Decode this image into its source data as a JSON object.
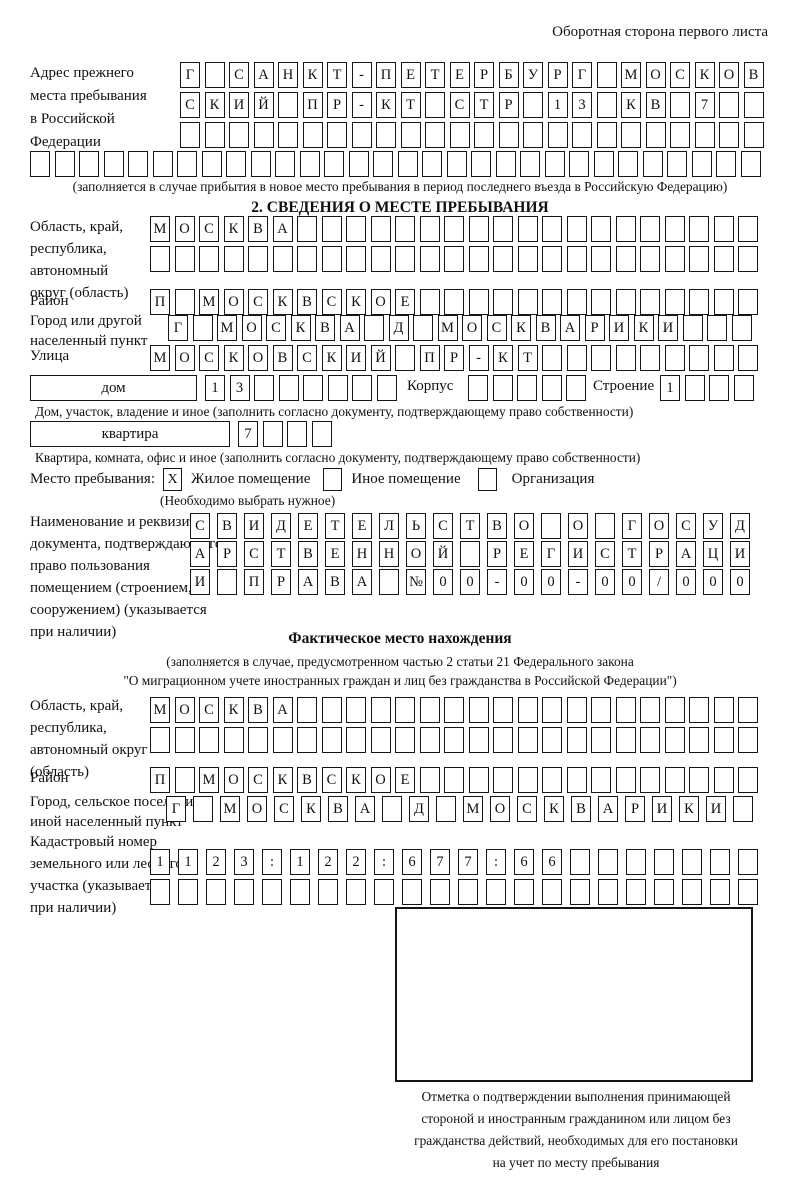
{
  "corner_note": "Оборотная сторона первого листа",
  "prev_address": {
    "label_lines": [
      "Адрес прежнего",
      "места пребывания",
      "в Российской",
      "Федерации"
    ],
    "rows": [
      {
        "chars": "Г САНКТ-ПЕТЕРБУРГ МОСКОВ",
        "count": 24
      },
      {
        "chars": "СКИЙ ПР-КТ СТР 13 КВ 7",
        "count": 24
      },
      {
        "chars": "",
        "count": 24
      },
      {
        "chars": "",
        "count": 30
      }
    ],
    "note": "(заполняется в случае прибытия в новое место пребывания в период последнего въезда в Российскую Федерацию)"
  },
  "section2": {
    "title": "2. СВЕДЕНИЯ О МЕСТЕ ПРЕБЫВАНИЯ",
    "region_label_lines": [
      "Область, край,",
      "республика,",
      "автономный",
      "округ (область)"
    ],
    "region_rows": [
      {
        "chars": "МОСКВА",
        "count": 25
      },
      {
        "chars": "",
        "count": 25
      }
    ],
    "district_label": "Район",
    "district_row": {
      "chars": "П МОСКВСКОЕ",
      "count": 25
    },
    "city_label_lines": [
      "Город или другой",
      "населенный пункт"
    ],
    "city_row": {
      "chars": "Г МОСКВА Д МОСКВАРИКИ",
      "count": 24
    },
    "street_label": "Улица",
    "street_row": {
      "chars": "МОСКОВСКИЙ ПР-КТ",
      "count": 25
    },
    "house_label": "дом",
    "house_cells": {
      "chars": "13",
      "count": 8
    },
    "korpus_label": "Корпус",
    "korpus_cells": {
      "chars": "",
      "count": 5
    },
    "stroenie_label": "Строение",
    "stroenie_cells": {
      "chars": "1",
      "count": 4
    },
    "house_caption": "Дом, участок, владение и иное (заполнить согласно документу, подтверждающему право собственности)",
    "apt_label": "квартира",
    "apt_cells": {
      "chars": "7",
      "count": 4
    },
    "apt_caption": "Квартира, комната, офис и иное (заполнить согласно документу, подтверждающему право собственности)",
    "stay": {
      "label": "Место пребывания:",
      "options": [
        {
          "label": "Жилое помещение",
          "mark": "X"
        },
        {
          "label": "Иное помещение",
          "mark": ""
        },
        {
          "label": "Организация",
          "mark": ""
        }
      ],
      "note": "(Необходимо выбрать нужное)"
    },
    "doc_label_lines": [
      "Наименование и реквизиты",
      "документа, подтверждающего",
      "право пользования",
      "помещением (строением,",
      "сооружением) (указывается",
      "при наличии)"
    ],
    "doc_rows": [
      {
        "chars": "СВИДЕТЕЛЬСТВО О ГОСУД",
        "count": 21
      },
      {
        "chars": "АРСТВЕННОЙ РЕГИСТРАЦИ",
        "count": 21
      },
      {
        "chars": "И ПРАВА №00-00-00/000",
        "count": 21
      }
    ]
  },
  "actual": {
    "title": "Фактическое место нахождения",
    "note_lines": [
      "(заполняется в случае, предусмотренном частью 2 статьи 21 Федерального закона",
      "\"О миграционном учете иностранных граждан и лиц без гражданства в Российской Федерации\")"
    ],
    "region_label_lines": [
      "Область, край,",
      "республика,",
      "автономный округ",
      "(область)"
    ],
    "region_rows": [
      {
        "chars": "МОСКВА",
        "count": 25
      },
      {
        "chars": "",
        "count": 25
      }
    ],
    "district_label": "Район",
    "district_row": {
      "chars": "П МОСКВСКОЕ",
      "count": 25
    },
    "city_label_lines": [
      "Город, сельское поселение,",
      "иной населенный пункт"
    ],
    "city_row": {
      "chars": "Г МОСКВА Д МОСКВАРИКИ",
      "count": 22
    },
    "cadastre_label_lines": [
      "Кадастровый номер",
      "земельного или лесного",
      "участка (указывается",
      "при наличии)"
    ],
    "cadastre_rows": [
      {
        "chars": "1123:122:677:66",
        "count": 22
      },
      {
        "chars": "",
        "count": 22
      }
    ],
    "stamp_caption_lines": [
      "Отметка о подтверждении выполнения принимающей",
      "стороной и иностранным гражданином или лицом без",
      "гражданства действий, необходимых для его постановки",
      "на учет по месту пребывания"
    ]
  }
}
